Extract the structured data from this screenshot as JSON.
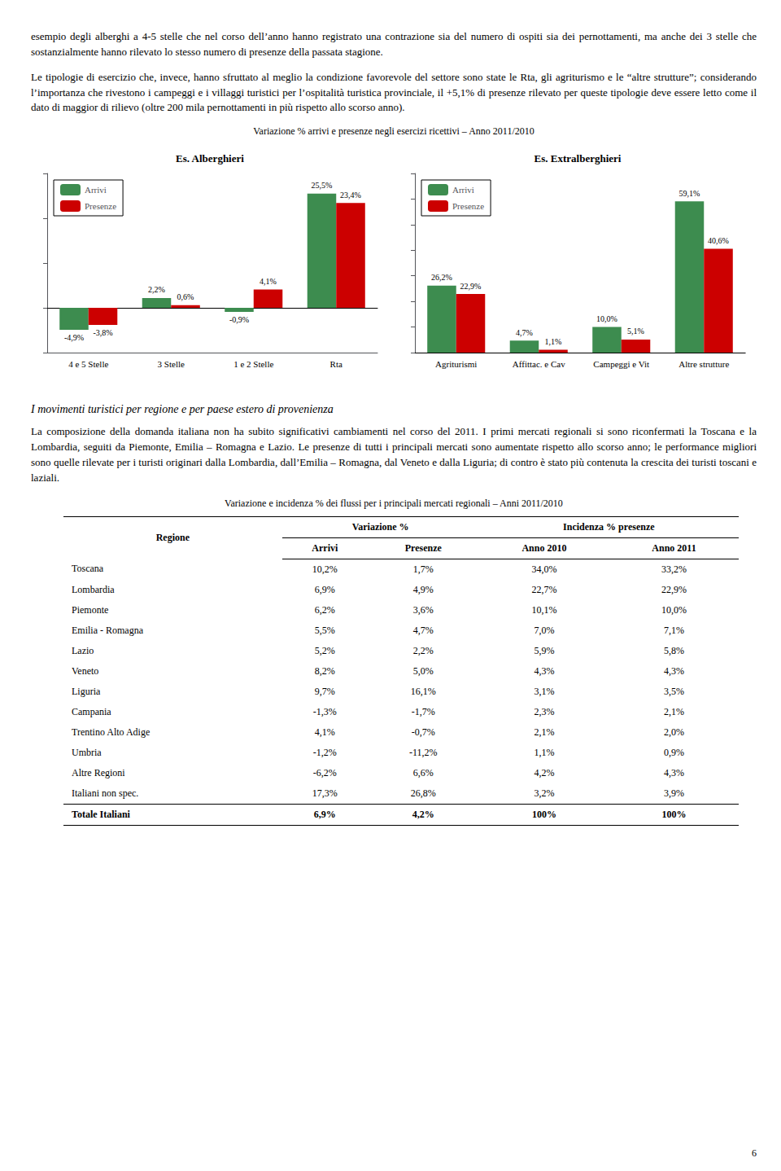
{
  "paragraphs": [
    "esempio degli alberghi a 4-5 stelle che nel corso dell’anno hanno registrato una contrazione sia del numero di ospiti sia dei pernottamenti, ma anche dei 3 stelle che sostanzialmente hanno rilevato lo stesso numero di presenze della passata stagione.",
    "Le tipologie di esercizio che, invece,  hanno sfruttato al meglio la condizione favorevole del settore sono state le Rta, gli agriturismo e le “altre strutture”; considerando l’importanza che rivestono i campeggi e i villaggi turistici per l’ospitalità turistica provinciale, il +5,1% di presenze rilevato per queste tipologie deve essere letto come il dato di maggior di rilievo (oltre 200 mila pernottamenti in più rispetto allo scorso anno)."
  ],
  "figure_title": "Variazione % arrivi e presenze negli esercizi ricettivi – Anno 2011/2010",
  "chart_data": [
    {
      "type": "bar",
      "title": "Es. Alberghieri",
      "categories": [
        "4 e 5 Stelle",
        "3 Stelle",
        "1 e 2 Stelle",
        "Rta"
      ],
      "series": [
        {
          "name": "Arrivi",
          "color": "#3d8c4f",
          "values": [
            -4.9,
            2.2,
            -0.9,
            25.5
          ],
          "value_labels": [
            "-4,9%",
            "2,2%",
            "-0,9%",
            "25,5%"
          ]
        },
        {
          "name": "Presenze",
          "color": "#cc0000",
          "values": [
            -3.8,
            0.6,
            4.1,
            23.4
          ],
          "value_labels": [
            "-3,8%",
            "0,6%",
            "4,1%",
            "23,4%"
          ]
        }
      ],
      "ylim": [
        -10,
        30
      ],
      "yticks": [
        -10,
        0,
        10,
        20,
        30
      ],
      "grid": false,
      "legend": "upper left",
      "data_labels": true,
      "tick_labels": "x"
    },
    {
      "type": "bar",
      "title": "Es. Extralberghieri",
      "categories": [
        "Agriturismi",
        "Affittac. e Cav",
        "Campeggi e Vit",
        "Altre strutture"
      ],
      "series": [
        {
          "name": "Arrivi",
          "color": "#3d8c4f",
          "values": [
            26.2,
            4.7,
            10.0,
            59.1
          ],
          "value_labels": [
            "26,2%",
            "4,7%",
            "10,0%",
            "59,1%"
          ]
        },
        {
          "name": "Presenze",
          "color": "#cc0000",
          "values": [
            22.9,
            1.1,
            5.1,
            40.6
          ],
          "value_labels": [
            "22,9%",
            "1,1%",
            "5,1%",
            "40,6%"
          ]
        }
      ],
      "ylim": [
        0,
        70
      ],
      "yticks": [
        0,
        10,
        20,
        30,
        40,
        50,
        60,
        70
      ],
      "grid": false,
      "legend": "upper left",
      "data_labels": true,
      "tick_labels": "x"
    }
  ],
  "section_title": "I movimenti turistici per regione e per paese estero di provenienza",
  "section_paragraphs": [
    "La composizione della domanda italiana non ha subito significativi cambiamenti nel corso del 2011. I primi mercati regionali si sono riconfermati la Toscana e la Lombardia, seguiti da Piemonte, Emilia – Romagna e Lazio. Le presenze di tutti i principali mercati sono aumentate rispetto allo scorso anno; le performance migliori sono quelle rilevate per i turisti originari dalla Lombardia, dall’Emilia – Romagna, dal Veneto e dalla Liguria; di contro è stato più contenuta la crescita dei turisti toscani e laziali."
  ],
  "table": {
    "title": "Variazione e incidenza % dei flussi per i principali mercati regionali – Anni 2011/2010",
    "header": [
      "Regione",
      "Variazione %",
      "Incidenza % presenze"
    ],
    "subheader": [
      "Arrivi",
      "Presenze",
      "Anno 2010",
      "Anno 2011"
    ],
    "rows": [
      [
        "Toscana",
        "10,2%",
        "1,7%",
        "34,0%",
        "33,2%"
      ],
      [
        "Lombardia",
        "6,9%",
        "4,9%",
        "22,7%",
        "22,9%"
      ],
      [
        "Piemonte",
        "6,2%",
        "3,6%",
        "10,1%",
        "10,0%"
      ],
      [
        "Emilia - Romagna",
        "5,5%",
        "4,7%",
        "7,0%",
        "7,1%"
      ],
      [
        "Lazio",
        "5,2%",
        "2,2%",
        "5,9%",
        "5,8%"
      ],
      [
        "Veneto",
        "8,2%",
        "5,0%",
        "4,3%",
        "4,3%"
      ],
      [
        "Liguria",
        "9,7%",
        "16,1%",
        "3,1%",
        "3,5%"
      ],
      [
        "Campania",
        "-1,3%",
        "-1,7%",
        "2,3%",
        "2,1%"
      ],
      [
        "Trentino Alto Adige",
        "4,1%",
        "-0,7%",
        "2,1%",
        "2,0%"
      ],
      [
        "Umbria",
        "-1,2%",
        "-11,2%",
        "1,1%",
        "0,9%"
      ],
      [
        "Altre Regioni",
        "-6,2%",
        "6,6%",
        "4,2%",
        "4,3%"
      ],
      [
        "Italiani non spec.",
        "17,3%",
        "26,8%",
        "3,2%",
        "3,9%"
      ],
      [
        "Totale Italiani",
        "6,9%",
        "4,2%",
        "100%",
        "100%"
      ]
    ]
  },
  "page_number": "6"
}
